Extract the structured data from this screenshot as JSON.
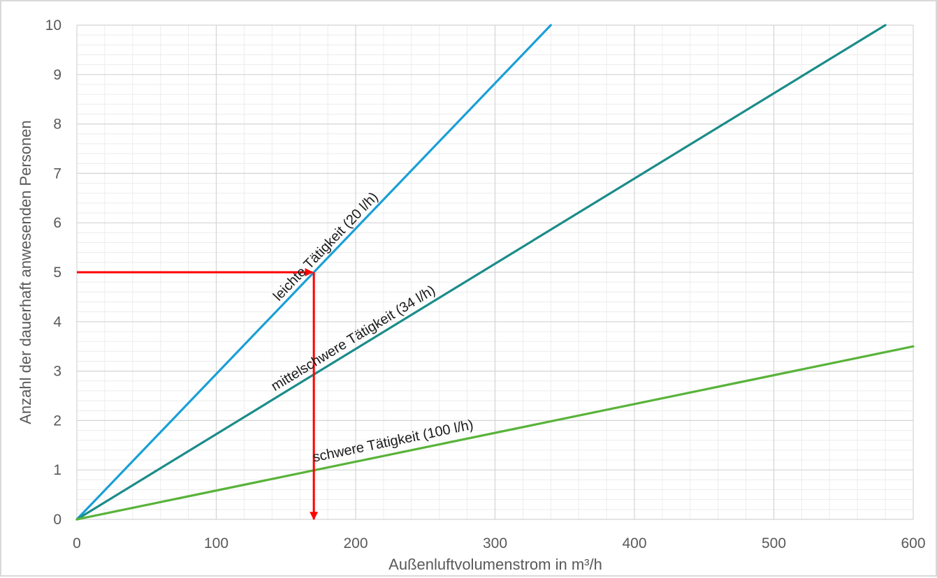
{
  "chart_data": {
    "type": "line",
    "xlabel": "Außenluftvolumenstrom in m³/h",
    "ylabel": "Anzahl der dauerhaft anwesenden Personen",
    "xlim": [
      0,
      600
    ],
    "ylim": [
      0,
      10
    ],
    "x_ticks": [
      "0",
      "100",
      "200",
      "300",
      "400",
      "500",
      "600"
    ],
    "y_ticks": [
      "0",
      "1",
      "2",
      "3",
      "4",
      "5",
      "6",
      "7",
      "8",
      "9",
      "10"
    ],
    "grid": true,
    "series": [
      {
        "name": "leichte Tätigkeit (20 l/h)",
        "x": [
          0,
          340
        ],
        "y": [
          0,
          10
        ],
        "color": "#1a9fd8"
      },
      {
        "name": "mittelschwere Tätigkeit (34 l/h)",
        "x": [
          0,
          580
        ],
        "y": [
          0,
          10
        ],
        "color": "#1b8c8a"
      },
      {
        "name": "schwere Tätigkeit (100 l/h)",
        "x": [
          0,
          600
        ],
        "y": [
          0,
          3.5
        ],
        "color": "#59b33a"
      }
    ],
    "annotation": {
      "type": "arrow-path",
      "color": "#ff0000",
      "points": [
        [
          0,
          5
        ],
        [
          170,
          5
        ],
        [
          170,
          0
        ]
      ]
    }
  }
}
